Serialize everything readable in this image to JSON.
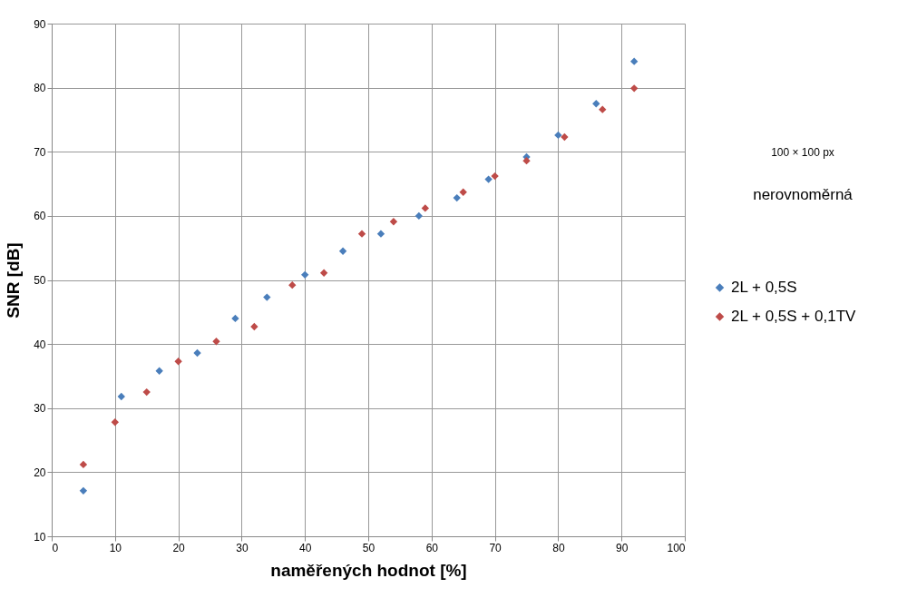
{
  "chart_data": {
    "type": "scatter",
    "xlabel": "naměřených hodnot [%]",
    "ylabel": "SNR [dB]",
    "xlim": [
      0,
      100
    ],
    "xticks": [
      0,
      10,
      20,
      30,
      40,
      50,
      60,
      70,
      80,
      90,
      100
    ],
    "ylim": [
      10,
      90
    ],
    "yticks": [
      10,
      20,
      30,
      40,
      50,
      60,
      70,
      80,
      90
    ],
    "grid": true,
    "legend": "right",
    "marker": "diamond",
    "annotations": [
      "100 × 100 px",
      "nerovnoměrná"
    ],
    "series": [
      {
        "name": "2L + 0,5S",
        "color": "#4a7ebb",
        "x": [
          5,
          11,
          17,
          23,
          29,
          34,
          40,
          46,
          52,
          58,
          64,
          69,
          75,
          80,
          86,
          92
        ],
        "values": [
          17.1,
          31.8,
          35.8,
          38.6,
          44,
          47.3,
          50.8,
          54.5,
          57.2,
          60,
          62.8,
          65.7,
          69.2,
          72.6,
          77.5,
          84.1
        ]
      },
      {
        "name": "2L + 0,5S + 0,1TV",
        "color": "#be4b48",
        "x": [
          5,
          10,
          15,
          20,
          26,
          32,
          38,
          43,
          49,
          54,
          59,
          65,
          70,
          75,
          81,
          87,
          92
        ],
        "values": [
          21.2,
          27.8,
          32.5,
          37.3,
          40.4,
          42.7,
          49.2,
          51.1,
          57.2,
          59.1,
          61.2,
          63.7,
          66.2,
          68.6,
          72.3,
          76.6,
          79.9
        ]
      }
    ]
  }
}
